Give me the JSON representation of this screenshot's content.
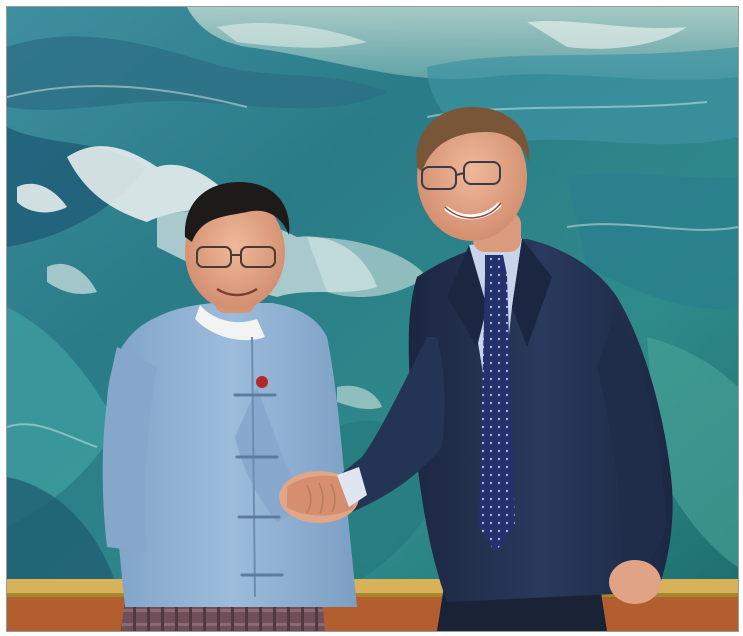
{
  "image": {
    "colors": {
      "wave_dark": "#1f5f73",
      "wave_mid": "#2f8b8a",
      "wave_light": "#6fc2b4",
      "foam": "#f2f6f4",
      "frame_gold": "#d7b25a",
      "wall": "#b35e2f",
      "jacket_blue": "#8fb2d4",
      "suit_navy": "#22304d",
      "shirt_light": "#c8d4ea",
      "tie_navy": "#25306c",
      "skin": "#e0a385"
    }
  }
}
